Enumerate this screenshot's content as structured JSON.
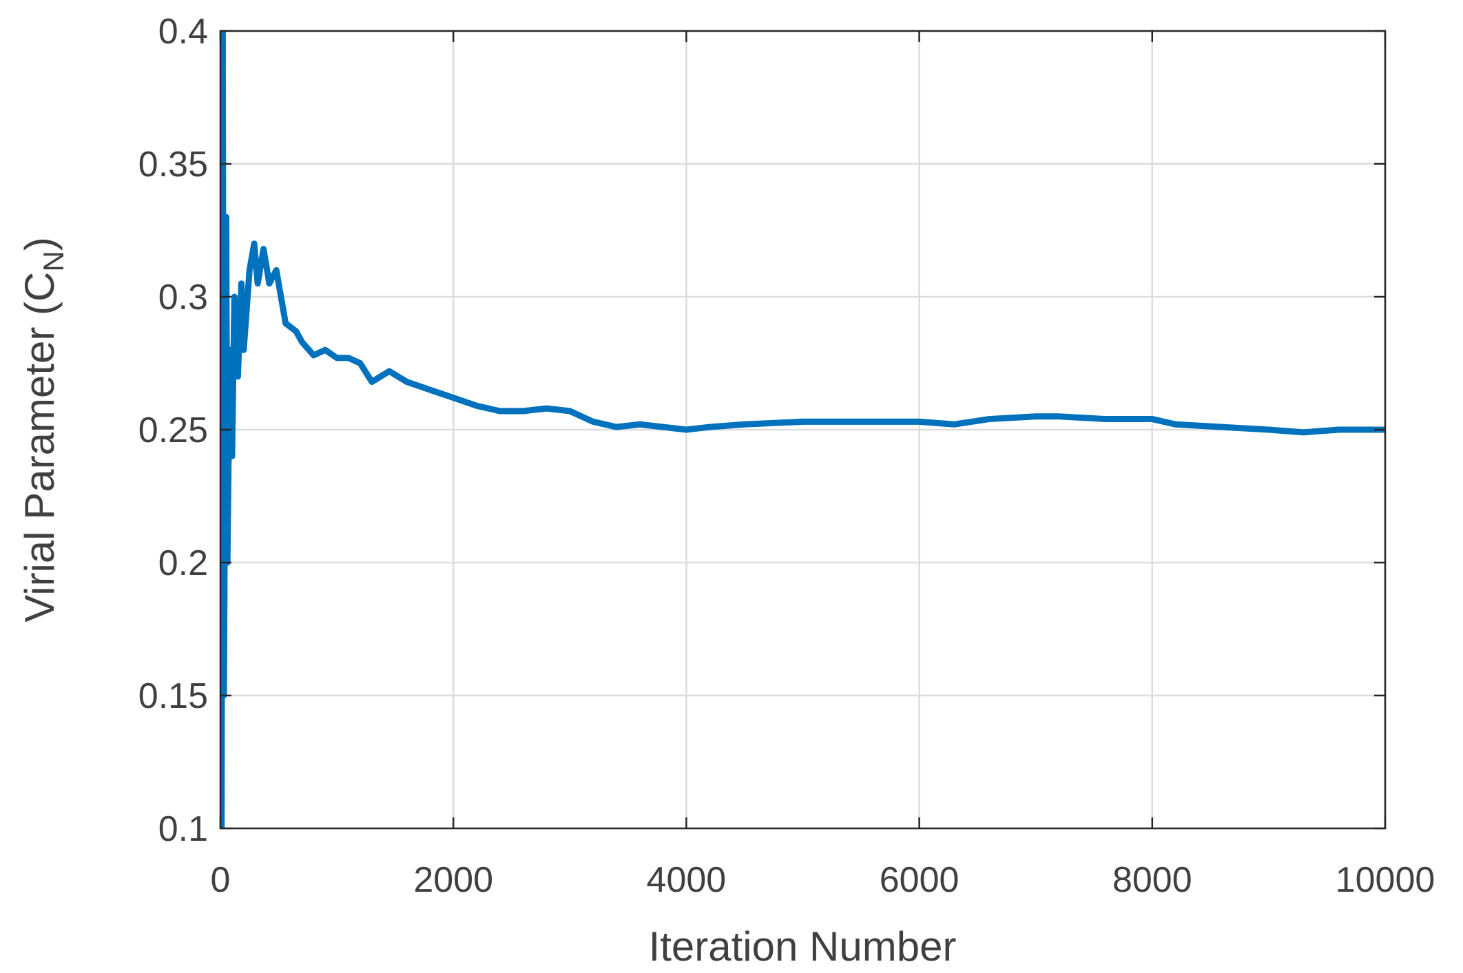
{
  "chart_data": {
    "type": "line",
    "xlabel": "Iteration Number",
    "ylabel": {
      "text": "Virial Parameter (C",
      "sub": "N",
      "end": ")"
    },
    "xlim": [
      0,
      10000
    ],
    "xticks": [
      0,
      2000,
      4000,
      6000,
      8000,
      10000
    ],
    "ylim": [
      0.1,
      0.4
    ],
    "yticks": [
      0.1,
      0.15,
      0.2,
      0.25,
      0.3,
      0.35,
      0.4
    ],
    "grid": true,
    "series": [
      {
        "color": "#0072bd",
        "x": [
          0,
          10,
          20,
          30,
          50,
          60,
          80,
          100,
          120,
          150,
          180,
          200,
          250,
          290,
          320,
          370,
          420,
          480,
          520,
          560,
          650,
          700,
          800,
          900,
          1000,
          1100,
          1200,
          1300,
          1450,
          1600,
          1800,
          2000,
          2200,
          2400,
          2600,
          2800,
          3000,
          3200,
          3400,
          3600,
          3800,
          4000,
          4200,
          4500,
          5000,
          5500,
          6000,
          6300,
          6600,
          7000,
          7200,
          7600,
          8000,
          8200,
          8600,
          9000,
          9300,
          9600,
          10000
        ],
        "values": [
          0.4,
          0.1,
          0.4,
          0.15,
          0.33,
          0.2,
          0.28,
          0.24,
          0.3,
          0.27,
          0.305,
          0.28,
          0.31,
          0.32,
          0.305,
          0.318,
          0.305,
          0.31,
          0.3,
          0.29,
          0.287,
          0.283,
          0.278,
          0.28,
          0.277,
          0.277,
          0.275,
          0.268,
          0.272,
          0.268,
          0.265,
          0.262,
          0.259,
          0.257,
          0.257,
          0.258,
          0.257,
          0.253,
          0.251,
          0.252,
          0.251,
          0.25,
          0.251,
          0.252,
          0.253,
          0.253,
          0.253,
          0.252,
          0.254,
          0.255,
          0.255,
          0.254,
          0.254,
          0.252,
          0.251,
          0.25,
          0.249,
          0.25,
          0.25
        ]
      }
    ]
  }
}
